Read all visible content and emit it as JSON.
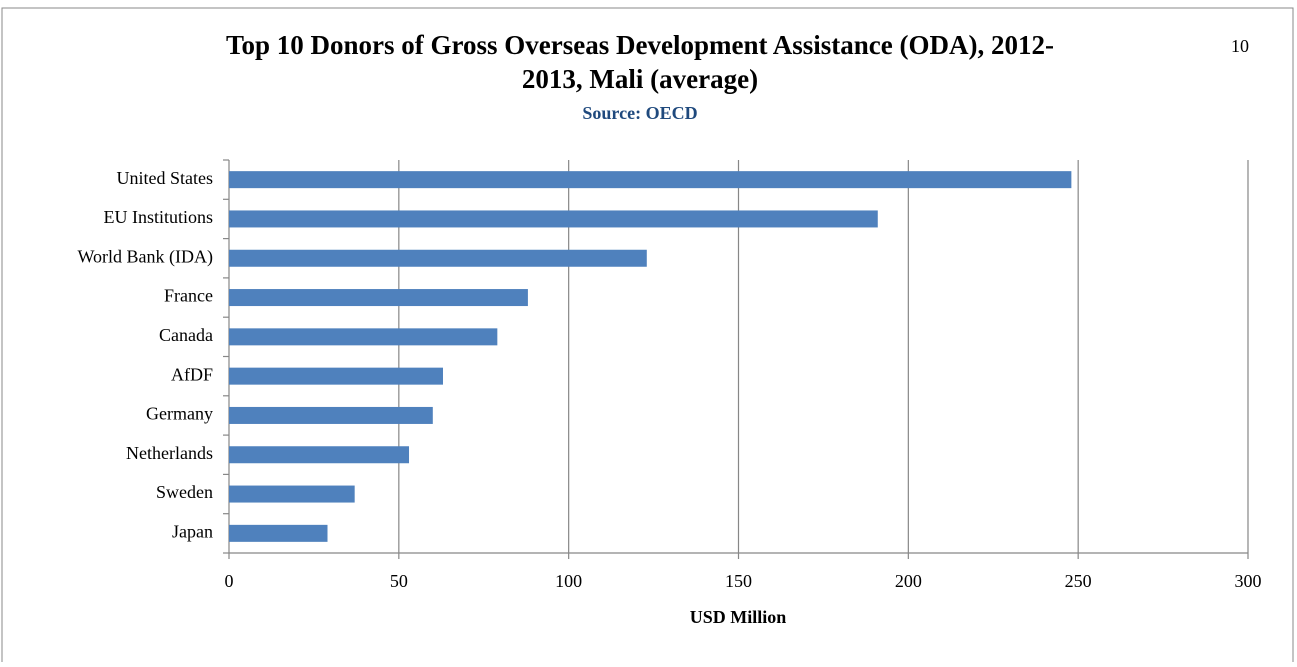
{
  "chart_data": {
    "type": "hbar",
    "title": [
      "Top 10 Donors of Gross Overseas Development Assistance (ODA), 2012-",
      "2013, Mali (average)"
    ],
    "subtitle": "Source: OECD",
    "page_number": "10",
    "xlabel": "USD Million",
    "categories": [
      "United States",
      "EU Institutions",
      "World Bank (IDA)",
      "France",
      "Canada",
      "AfDF",
      "Germany",
      "Netherlands",
      "Sweden",
      "Japan"
    ],
    "values": [
      248,
      191,
      123,
      88,
      79,
      63,
      60,
      53,
      37,
      29
    ],
    "color": "#4f81bd",
    "xlim": [
      0,
      300
    ],
    "xticks": [
      0,
      50,
      100,
      150,
      200,
      250,
      300
    ],
    "grid": true
  }
}
